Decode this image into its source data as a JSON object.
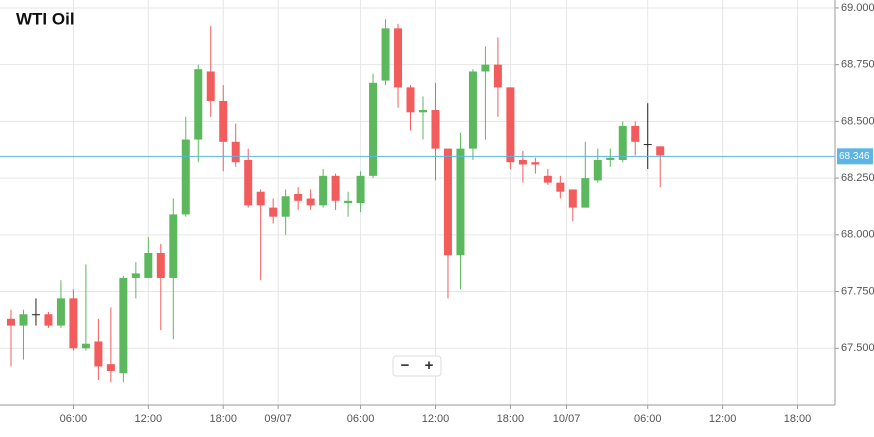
{
  "chart_data": {
    "type": "candlestick",
    "title": "WTI Oil",
    "open": [
      67.63,
      67.6,
      67.65,
      67.65,
      67.6,
      67.72,
      67.5,
      67.53,
      67.43,
      67.39,
      67.81,
      67.81,
      67.92,
      67.81,
      68.09,
      68.42,
      68.72,
      68.59,
      68.41,
      68.33,
      68.19,
      68.12,
      68.08,
      68.18,
      68.16,
      68.13,
      68.26,
      68.14,
      68.14,
      68.26,
      68.68,
      68.91,
      68.65,
      68.54,
      68.55,
      68.38,
      67.91,
      68.38,
      68.72,
      68.75,
      68.65,
      68.33,
      68.32,
      68.26,
      68.23,
      68.2,
      68.12,
      68.24,
      68.33,
      68.33,
      68.48,
      68.4,
      68.39
    ],
    "high": [
      67.67,
      67.67,
      67.72,
      67.66,
      67.8,
      67.76,
      67.87,
      67.63,
      67.68,
      67.82,
      67.88,
      67.99,
      67.96,
      68.16,
      68.52,
      68.75,
      68.92,
      68.66,
      68.49,
      68.38,
      68.2,
      68.16,
      68.2,
      68.21,
      68.2,
      68.29,
      68.27,
      68.19,
      68.28,
      68.71,
      68.95,
      68.93,
      68.66,
      68.61,
      68.67,
      68.38,
      68.45,
      68.73,
      68.83,
      68.87,
      68.65,
      68.37,
      68.34,
      68.29,
      68.26,
      68.2,
      68.41,
      68.38,
      68.38,
      68.5,
      68.5,
      68.58,
      68.39
    ],
    "low": [
      67.42,
      67.45,
      67.6,
      67.59,
      67.59,
      67.49,
      67.49,
      67.36,
      67.35,
      67.35,
      67.72,
      67.81,
      67.58,
      67.54,
      68.08,
      68.32,
      68.52,
      68.28,
      68.3,
      68.12,
      67.8,
      68.05,
      68.0,
      68.11,
      68.11,
      68.12,
      68.11,
      68.08,
      68.1,
      68.25,
      68.66,
      68.56,
      68.46,
      68.42,
      68.24,
      67.72,
      67.76,
      68.33,
      68.42,
      68.52,
      68.29,
      68.23,
      68.27,
      68.22,
      68.16,
      68.06,
      68.12,
      68.23,
      68.3,
      68.32,
      68.35,
      68.29,
      68.21
    ],
    "close": [
      67.6,
      67.65,
      67.65,
      67.6,
      67.72,
      67.5,
      67.52,
      67.42,
      67.4,
      67.81,
      67.83,
      67.92,
      67.81,
      68.09,
      68.42,
      68.73,
      68.59,
      68.41,
      68.32,
      68.13,
      68.13,
      68.08,
      68.17,
      68.15,
      68.13,
      68.26,
      68.15,
      68.15,
      68.26,
      68.67,
      68.91,
      68.65,
      68.54,
      68.55,
      68.38,
      67.91,
      68.38,
      68.72,
      68.75,
      68.65,
      68.32,
      68.31,
      68.31,
      68.23,
      68.19,
      68.12,
      68.25,
      68.33,
      68.34,
      68.48,
      68.41,
      68.4,
      68.35
    ],
    "up_color": "#5cb85c",
    "down_color": "#f25c5c",
    "doji_color": "#222222",
    "xlim": [
      -0.88,
      66
    ],
    "xticks": [
      {
        "value": 5,
        "label": "06:00"
      },
      {
        "value": 11,
        "label": "12:00"
      },
      {
        "value": 17,
        "label": "18:00"
      },
      {
        "value": 21.4,
        "label": "09/07"
      },
      {
        "value": 28,
        "label": "06:00"
      },
      {
        "value": 34,
        "label": "12:00"
      },
      {
        "value": 40,
        "label": "18:00"
      },
      {
        "value": 44.5,
        "label": "10/07"
      },
      {
        "value": 51,
        "label": "06:00"
      },
      {
        "value": 57,
        "label": "12:00"
      },
      {
        "value": 63,
        "label": "18:00"
      }
    ],
    "ylim": [
      67.25,
      69.035
    ],
    "yticks": [
      {
        "value": 67.5,
        "label": "67.500"
      },
      {
        "value": 67.75,
        "label": "67.750"
      },
      {
        "value": 68,
        "label": "68.000"
      },
      {
        "value": 68.25,
        "label": "68.250"
      },
      {
        "value": 68.5,
        "label": "68.500"
      },
      {
        "value": 68.75,
        "label": "68.750"
      },
      {
        "value": 69,
        "label": "69.000"
      }
    ],
    "current_price": 68.346,
    "current_price_color": "#5bb5e6",
    "grid": true,
    "zoom_controls": [
      "−",
      "+"
    ]
  }
}
